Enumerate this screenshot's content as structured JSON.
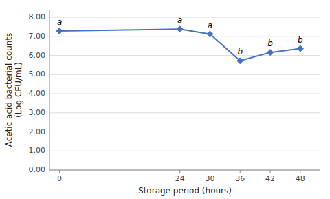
{
  "chart_data": {
    "type": "line",
    "x": [
      0,
      24,
      30,
      36,
      42,
      48
    ],
    "values": [
      7.28,
      7.38,
      7.12,
      5.72,
      6.16,
      6.36
    ],
    "annotations": [
      "a",
      "a",
      "a",
      "b",
      "b",
      "b"
    ],
    "xlabel": "Storage period (hours)",
    "ylabel": "Acetic acid bacterial counts\n(Log CFU/mL)",
    "xlim": [
      -2,
      52
    ],
    "xticks": [
      0,
      24,
      30,
      36,
      42,
      48
    ],
    "ylim": [
      0.0,
      8.4
    ],
    "yticks": [
      {
        "value": 0.0,
        "label": "0.00"
      },
      {
        "value": 1.0,
        "label": "1.00"
      },
      {
        "value": 2.0,
        "label": "2.00"
      },
      {
        "value": 3.0,
        "label": "3.00"
      },
      {
        "value": 4.0,
        "label": "4.00"
      },
      {
        "value": 5.0,
        "label": "5.00"
      },
      {
        "value": 6.0,
        "label": "6.00"
      },
      {
        "value": 7.0,
        "label": "7.00"
      },
      {
        "value": 8.0,
        "label": "8.00"
      }
    ],
    "color": "#4472C4",
    "marker": "diamond",
    "grid": true
  }
}
